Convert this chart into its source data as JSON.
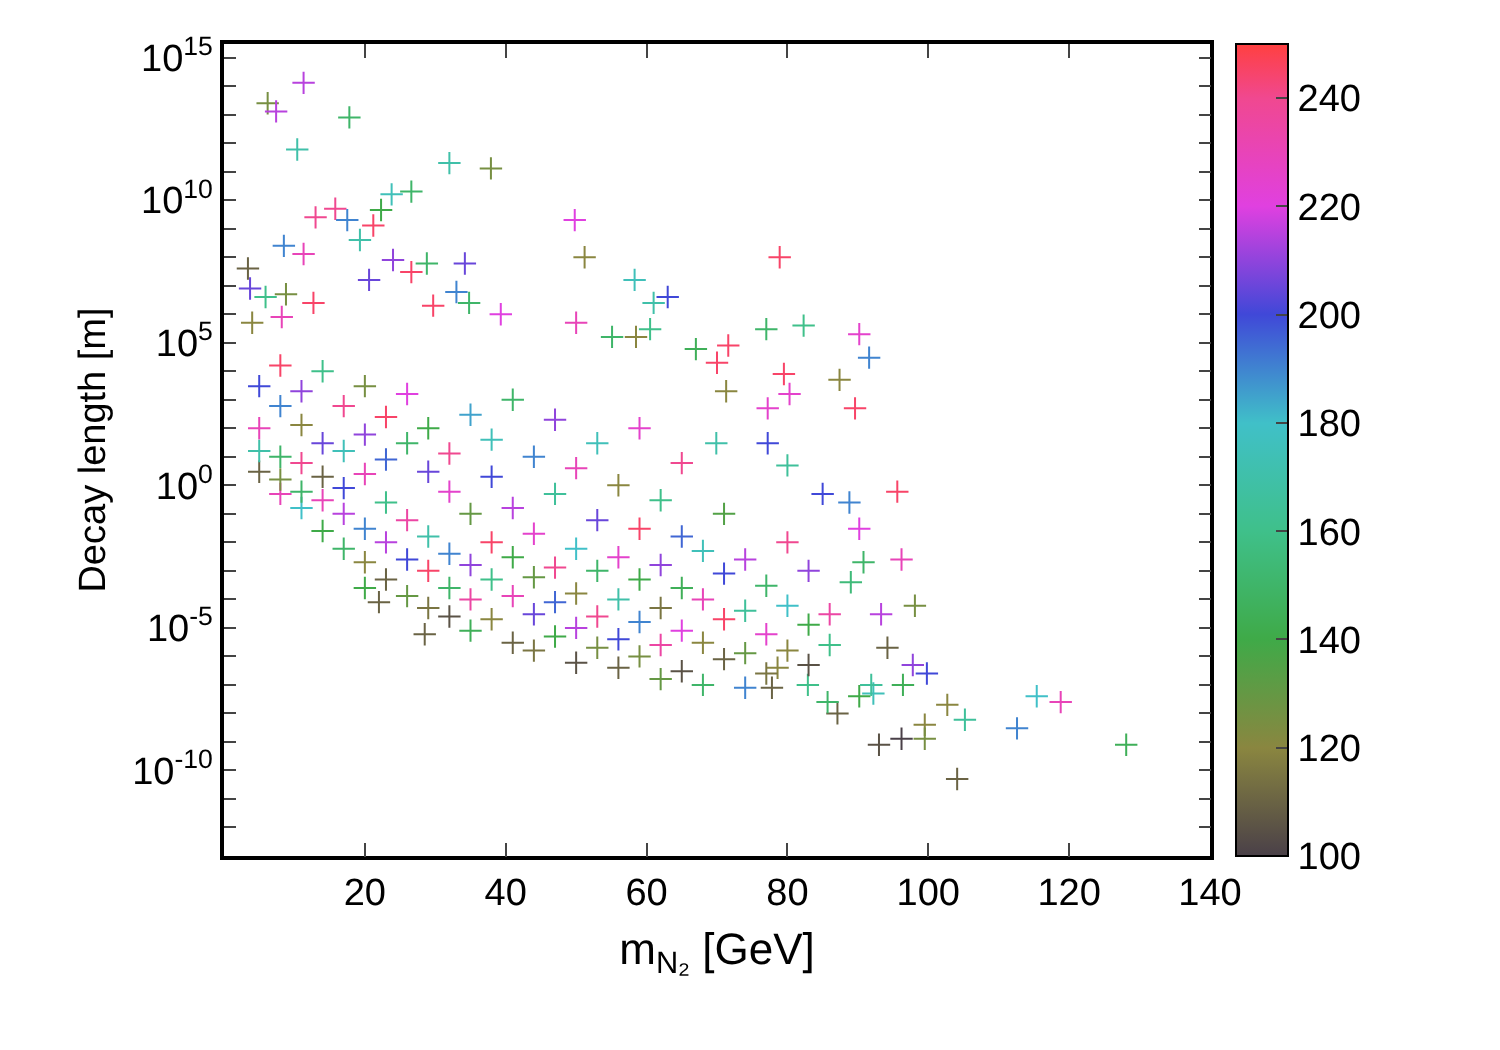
{
  "chart_data": {
    "type": "scatter",
    "xlabel": "m$_{N₂}$ [GeV]",
    "ylabel": "Decay length [m]",
    "x": [
      11.3,
      6.2,
      7.4,
      17.8,
      10.4,
      32,
      37.9,
      26.6,
      23.8,
      22.3,
      15.8,
      13,
      17.5,
      21.2,
      19.3,
      49.8,
      51.2,
      8.5,
      11.3,
      3.4,
      24,
      26.6,
      28.8,
      34.2,
      20.6,
      3.7,
      5.9,
      8.8,
      58.3,
      63,
      61,
      33,
      29.7,
      34.8,
      4,
      8.2,
      12.7,
      39.3,
      50,
      55.1,
      58.5,
      60.5,
      67,
      70,
      78.9,
      77,
      82.3,
      90.2,
      91.6,
      71.6,
      79.5,
      87.4,
      71.3,
      80.3,
      89.6,
      77.2,
      69.9,
      77.2,
      95.6,
      96.2,
      80,
      85,
      88.8,
      90.2,
      90.8,
      98.1,
      93.3,
      89,
      99.8,
      97.8,
      96.4,
      94.2,
      92.2,
      90.2,
      102.7,
      105.2,
      99.5,
      115.4,
      118.8,
      112.6,
      128.1,
      104.1,
      93,
      96.2,
      99.5,
      87.1,
      85.7,
      91.9,
      78.6,
      82.9,
      77.8,
      5,
      5,
      5,
      5,
      8,
      8,
      8,
      8,
      8,
      11,
      11,
      11,
      11,
      11,
      14,
      14,
      14,
      14,
      14,
      17,
      17,
      17,
      17,
      17,
      20,
      20,
      20,
      20,
      20,
      20,
      23,
      23,
      23,
      23,
      23,
      26,
      26,
      26,
      26,
      26,
      29,
      29,
      29,
      29,
      29,
      32,
      32,
      32,
      32,
      32,
      35,
      35,
      35,
      35,
      35,
      38,
      38,
      38,
      38,
      38,
      41,
      41,
      41,
      41,
      41,
      44,
      44,
      44,
      44,
      44,
      47,
      47,
      47,
      47,
      47,
      50,
      50,
      50,
      50,
      50,
      53,
      53,
      53,
      53,
      53,
      56,
      56,
      56,
      56,
      56,
      59,
      59,
      59,
      59,
      59,
      62,
      62,
      62,
      62,
      62,
      65,
      65,
      65,
      65,
      65,
      68,
      68,
      68,
      68,
      71,
      71,
      71,
      71,
      74,
      74,
      74,
      74,
      77,
      77,
      77,
      80,
      80,
      80,
      83,
      83,
      83,
      86,
      86,
      22,
      28.5
    ],
    "values": [
      130000000000000.0,
      25000000000000.0,
      13000000000000.0,
      8000000000000.0,
      600000000000.0,
      200000000000.0,
      130000000000.0,
      20000000000.0,
      16000000000.0,
      4500000000.0,
      5000000000.0,
      2500000000.0,
      2000000000.0,
      1300000000.0,
      400000000.0,
      2000000000.0,
      100000000.0,
      250000000.0,
      130000000.0,
      40000000.0,
      80000000.0,
      30000000.0,
      60000000.0,
      60000000.0,
      16000000.0,
      8000000.0,
      4000000.0,
      5000000.0,
      16000000.0,
      4000000.0,
      2500000.0,
      6000000.0,
      2000000.0,
      2500000.0,
      500000.0,
      800000.0,
      2500000.0,
      1000000.0,
      500000.0,
      160000.0,
      160000.0,
      300000.0,
      60000.0,
      20000.0,
      100000000.0,
      300000.0,
      400000.0,
      200000.0,
      30000.0,
      80000.0,
      8000.0,
      5000.0,
      2000.0,
      1600.0,
      500,
      500,
      30,
      30,
      0.6,
      0.0025,
      5,
      0.5,
      0.25,
      0.03,
      0.002,
      6e-05,
      3e-05,
      0.0004,
      2.5e-07,
      5e-07,
      1e-07,
      2e-06,
      5e-08,
      4e-08,
      2e-08,
      6e-09,
      4e-09,
      4e-08,
      2.5e-08,
      3e-09,
      8e-10,
      5e-11,
      8e-10,
      1.3e-09,
      1.3e-09,
      1e-08,
      2.5e-08,
      1e-07,
      4e-07,
      1e-07,
      8e-08,
      3000.0,
      100,
      3,
      16,
      16000.0,
      600,
      10,
      0.5,
      1.6,
      2000.0,
      130,
      6,
      0.16,
      0.6,
      10000.0,
      30,
      0.3,
      0.025,
      2,
      600,
      16,
      0.1,
      0.006,
      0.8,
      3000.0,
      2.5,
      0.03,
      0.002,
      0.00025,
      60,
      250,
      0.25,
      0.01,
      0.0005,
      8,
      30,
      0.06,
      0.0025,
      0.00013,
      1600.0,
      3,
      0.016,
      0.001,
      5e-05,
      100,
      0.6,
      0.004,
      0.00025,
      2.5e-05,
      13,
      300,
      0.1,
      0.0016,
      0.0001,
      8e-06,
      2,
      0.01,
      0.0005,
      2e-05,
      40,
      0.16,
      0.003,
      0.00013,
      3e-06,
      1000.0,
      10,
      0.02,
      0.0006,
      3e-05,
      1.6e-06,
      0.5,
      0.0013,
      8e-05,
      5e-06,
      200,
      4,
      0.006,
      0.00016,
      1e-05,
      6e-07,
      0.06,
      0.001,
      2.5e-05,
      2e-06,
      30,
      1,
      0.003,
      0.0001,
      4e-06,
      4e-07,
      0.03,
      0.0005,
      1.6e-05,
      1e-06,
      100,
      0.3,
      0.0016,
      5e-05,
      2.5e-06,
      1.6e-07,
      0.016,
      0.00025,
      8e-06,
      3e-07,
      6,
      0.005,
      0.0001,
      3e-06,
      1e-07,
      0.1,
      0.0008,
      2e-05,
      8e-07,
      0.0025,
      4e-05,
      1.3e-06,
      8e-08,
      0.0003,
      6e-06,
      2.5e-07,
      0.01,
      6e-05,
      1.6e-06,
      0.001,
      1.3e-05,
      5e-07,
      3e-05,
      2.5e-06,
      8e-05,
      6e-06
    ],
    "cvalues": [
      215,
      125,
      215,
      150,
      170,
      170,
      125,
      150,
      175,
      140,
      240,
      240,
      190,
      245,
      170,
      220,
      120,
      190,
      230,
      110,
      210,
      245,
      150,
      205,
      205,
      205,
      160,
      125,
      175,
      200,
      170,
      190,
      245,
      150,
      120,
      230,
      245,
      220,
      230,
      150,
      120,
      160,
      145,
      245,
      245,
      150,
      160,
      225,
      190,
      245,
      245,
      120,
      120,
      225,
      245,
      225,
      170,
      200,
      245,
      230,
      165,
      200,
      190,
      220,
      150,
      125,
      215,
      155,
      200,
      210,
      145,
      110,
      175,
      140,
      120,
      165,
      120,
      180,
      230,
      190,
      145,
      110,
      105,
      100,
      125,
      110,
      150,
      165,
      120,
      160,
      110,
      200,
      230,
      110,
      170,
      245,
      190,
      150,
      230,
      125,
      210,
      120,
      240,
      180,
      150,
      160,
      205,
      230,
      140,
      110,
      240,
      175,
      215,
      150,
      200,
      125,
      230,
      190,
      120,
      140,
      210,
      245,
      160,
      215,
      110,
      195,
      150,
      235,
      200,
      130,
      220,
      205,
      170,
      245,
      115,
      140,
      225,
      190,
      150,
      105,
      240,
      185,
      130,
      210,
      235,
      145,
      200,
      245,
      160,
      120,
      175,
      215,
      140,
      230,
      110,
      150,
      190,
      225,
      130,
      205,
      115,
      165,
      240,
      195,
      140,
      210,
      230,
      180,
      120,
      215,
      105,
      205,
      150,
      240,
      125,
      175,
      120,
      225,
      170,
      200,
      110,
      245,
      140,
      190,
      125,
      225,
      160,
      210,
      115,
      235,
      130,
      195,
      145,
      220,
      105,
      240,
      175,
      230,
      120,
      150,
      135,
      200,
      245,
      110,
      215,
      165,
      130,
      190,
      150,
      225,
      115,
      240,
      180,
      120,
      210,
      140,
      105,
      235,
      160,
      110,
      110
    ],
    "clim": [
      100,
      250
    ],
    "cticks": [
      100,
      120,
      140,
      160,
      180,
      200,
      220,
      240
    ],
    "xlim": [
      0,
      140
    ],
    "xticks": [
      20,
      40,
      60,
      80,
      100,
      120,
      140
    ],
    "ylim": [
      1e-13,
      3000000000000000.0
    ],
    "log": true,
    "yticks": [
      {
        "value": 1e-10,
        "label": "10$^{-10}$"
      },
      {
        "value": 1e-05,
        "label": "10$^{-5}$"
      },
      {
        "value": 1,
        "label": "10$^{0}$"
      },
      {
        "value": 100000.0,
        "label": "10$^{5}$"
      },
      {
        "value": 10000000000.0,
        "label": "10$^{10}$"
      },
      {
        "value": 1000000000000000.0,
        "label": "10$^{15}$"
      },
      {
        "value": 1e-12,
        "label": null
      },
      {
        "value": 1e-11,
        "label": null
      },
      {
        "value": 1e-09,
        "label": null
      },
      {
        "value": 1e-08,
        "label": null
      },
      {
        "value": 1e-07,
        "label": null
      },
      {
        "value": 1e-06,
        "label": null
      },
      {
        "value": 0.0001,
        "label": null
      },
      {
        "value": 0.001,
        "label": null
      },
      {
        "value": 0.01,
        "label": null
      },
      {
        "value": 0.1,
        "label": null
      },
      {
        "value": 10,
        "label": null
      },
      {
        "value": 100,
        "label": null
      },
      {
        "value": 1000.0,
        "label": null
      },
      {
        "value": 10000.0,
        "label": null
      },
      {
        "value": 1000000.0,
        "label": null
      },
      {
        "value": 10000000.0,
        "label": null
      },
      {
        "value": 100000000.0,
        "label": null
      },
      {
        "value": 1000000000.0,
        "label": null
      },
      {
        "value": 100000000000.0,
        "label": null
      },
      {
        "value": 1000000000000.0,
        "label": null
      },
      {
        "value": 10000000000000.0,
        "label": null
      },
      {
        "value": 100000000000000.0,
        "label": null
      }
    ],
    "marker": "cross",
    "grid": false,
    "legend": false
  }
}
